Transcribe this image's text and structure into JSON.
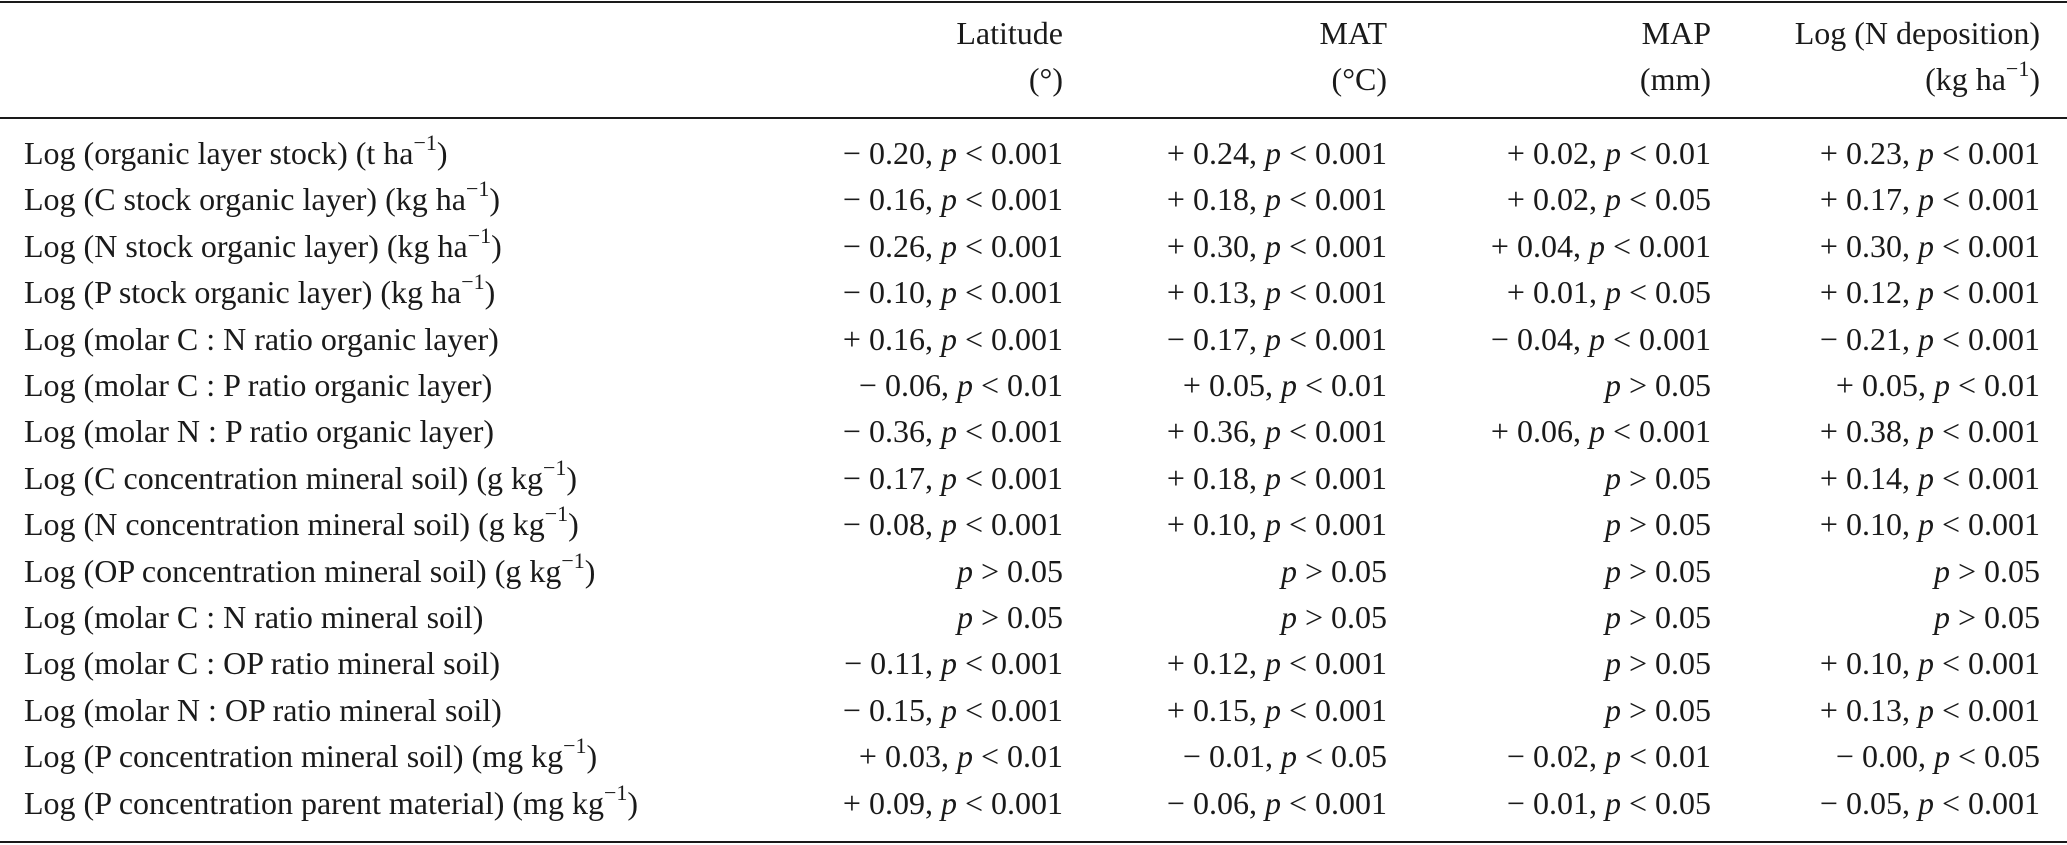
{
  "headers": [
    {
      "line1": "Latitude",
      "line2": "(°)"
    },
    {
      "line1": "MAT",
      "line2": "(°C)"
    },
    {
      "line1": "MAP",
      "line2": "(mm)"
    },
    {
      "line1": "Log (N deposition)",
      "line2_base": "(kg ha",
      "line2_sup": "−1",
      "line2_end": ")"
    }
  ],
  "rows": [
    {
      "label_base": "Log (organic layer stock) (t ha",
      "label_sup": "−1",
      "label_end": ")",
      "values": [
        "− 0.20, p < 0.001",
        "+ 0.24, p < 0.001",
        "+ 0.02, p < 0.01",
        "+ 0.23, p < 0.001"
      ]
    },
    {
      "label_base": "Log (C stock organic layer) (kg ha",
      "label_sup": "−1",
      "label_end": ")",
      "values": [
        "− 0.16, p < 0.001",
        "+ 0.18, p < 0.001",
        "+ 0.02, p < 0.05",
        "+ 0.17, p < 0.001"
      ]
    },
    {
      "label_base": "Log (N stock organic layer) (kg ha",
      "label_sup": "−1",
      "label_end": ")",
      "values": [
        "− 0.26, p < 0.001",
        "+ 0.30, p < 0.001",
        "+ 0.04, p < 0.001",
        "+ 0.30, p < 0.001"
      ]
    },
    {
      "label_base": "Log (P stock organic layer) (kg ha",
      "label_sup": "−1",
      "label_end": ")",
      "values": [
        "− 0.10, p < 0.001",
        "+ 0.13, p < 0.001",
        "+ 0.01, p < 0.05",
        "+ 0.12, p < 0.001"
      ]
    },
    {
      "label_base": "Log (molar C : N ratio organic layer)",
      "label_sup": "",
      "label_end": "",
      "values": [
        "+ 0.16, p < 0.001",
        "− 0.17, p < 0.001",
        "− 0.04, p < 0.001",
        "− 0.21, p < 0.001"
      ]
    },
    {
      "label_base": "Log (molar C : P ratio organic layer)",
      "label_sup": "",
      "label_end": "",
      "values": [
        "− 0.06, p < 0.01",
        "+ 0.05, p < 0.01",
        "p > 0.05",
        "+ 0.05, p < 0.01"
      ]
    },
    {
      "label_base": "Log (molar N : P ratio organic layer)",
      "label_sup": "",
      "label_end": "",
      "values": [
        "− 0.36, p < 0.001",
        "+ 0.36, p < 0.001",
        "+ 0.06, p < 0.001",
        "+ 0.38, p < 0.001"
      ]
    },
    {
      "label_base": "Log (C concentration mineral soil) (g kg",
      "label_sup": "−1",
      "label_end": ")",
      "values": [
        "− 0.17, p < 0.001",
        "+ 0.18, p < 0.001",
        "p > 0.05",
        "+ 0.14, p < 0.001"
      ]
    },
    {
      "label_base": "Log (N concentration mineral soil) (g kg",
      "label_sup": "−1",
      "label_end": ")",
      "values": [
        "− 0.08, p < 0.001",
        "+ 0.10, p < 0.001",
        "p > 0.05",
        "+ 0.10, p < 0.001"
      ]
    },
    {
      "label_base": "Log (OP concentration mineral soil) (g kg",
      "label_sup": "−1",
      "label_end": ")",
      "values": [
        "p > 0.05",
        "p > 0.05",
        "p > 0.05",
        "p > 0.05"
      ]
    },
    {
      "label_base": "Log (molar C : N ratio mineral soil)",
      "label_sup": "",
      "label_end": "",
      "values": [
        "p > 0.05",
        "p > 0.05",
        "p > 0.05",
        "p > 0.05"
      ]
    },
    {
      "label_base": "Log (molar C : OP ratio mineral soil)",
      "label_sup": "",
      "label_end": "",
      "values": [
        "− 0.11, p < 0.001",
        "+ 0.12, p < 0.001",
        "p > 0.05",
        "+ 0.10, p < 0.001"
      ]
    },
    {
      "label_base": "Log (molar N : OP ratio mineral soil)",
      "label_sup": "",
      "label_end": "",
      "values": [
        "− 0.15, p < 0.001",
        "+ 0.15, p < 0.001",
        "p > 0.05",
        "+ 0.13, p < 0.001"
      ]
    },
    {
      "label_base": "Log (P concentration mineral soil) (mg kg",
      "label_sup": "−1",
      "label_end": ")",
      "values": [
        "+ 0.03, p < 0.01",
        "− 0.01, p < 0.05",
        "− 0.02, p < 0.01",
        "− 0.00, p < 0.05"
      ]
    },
    {
      "label_base": "Log (P concentration parent material) (mg kg",
      "label_sup": "−1",
      "label_end": ")",
      "values": [
        "+ 0.09, p < 0.001",
        "− 0.06, p < 0.001",
        "− 0.01, p < 0.05",
        "− 0.05, p < 0.001"
      ]
    }
  ]
}
